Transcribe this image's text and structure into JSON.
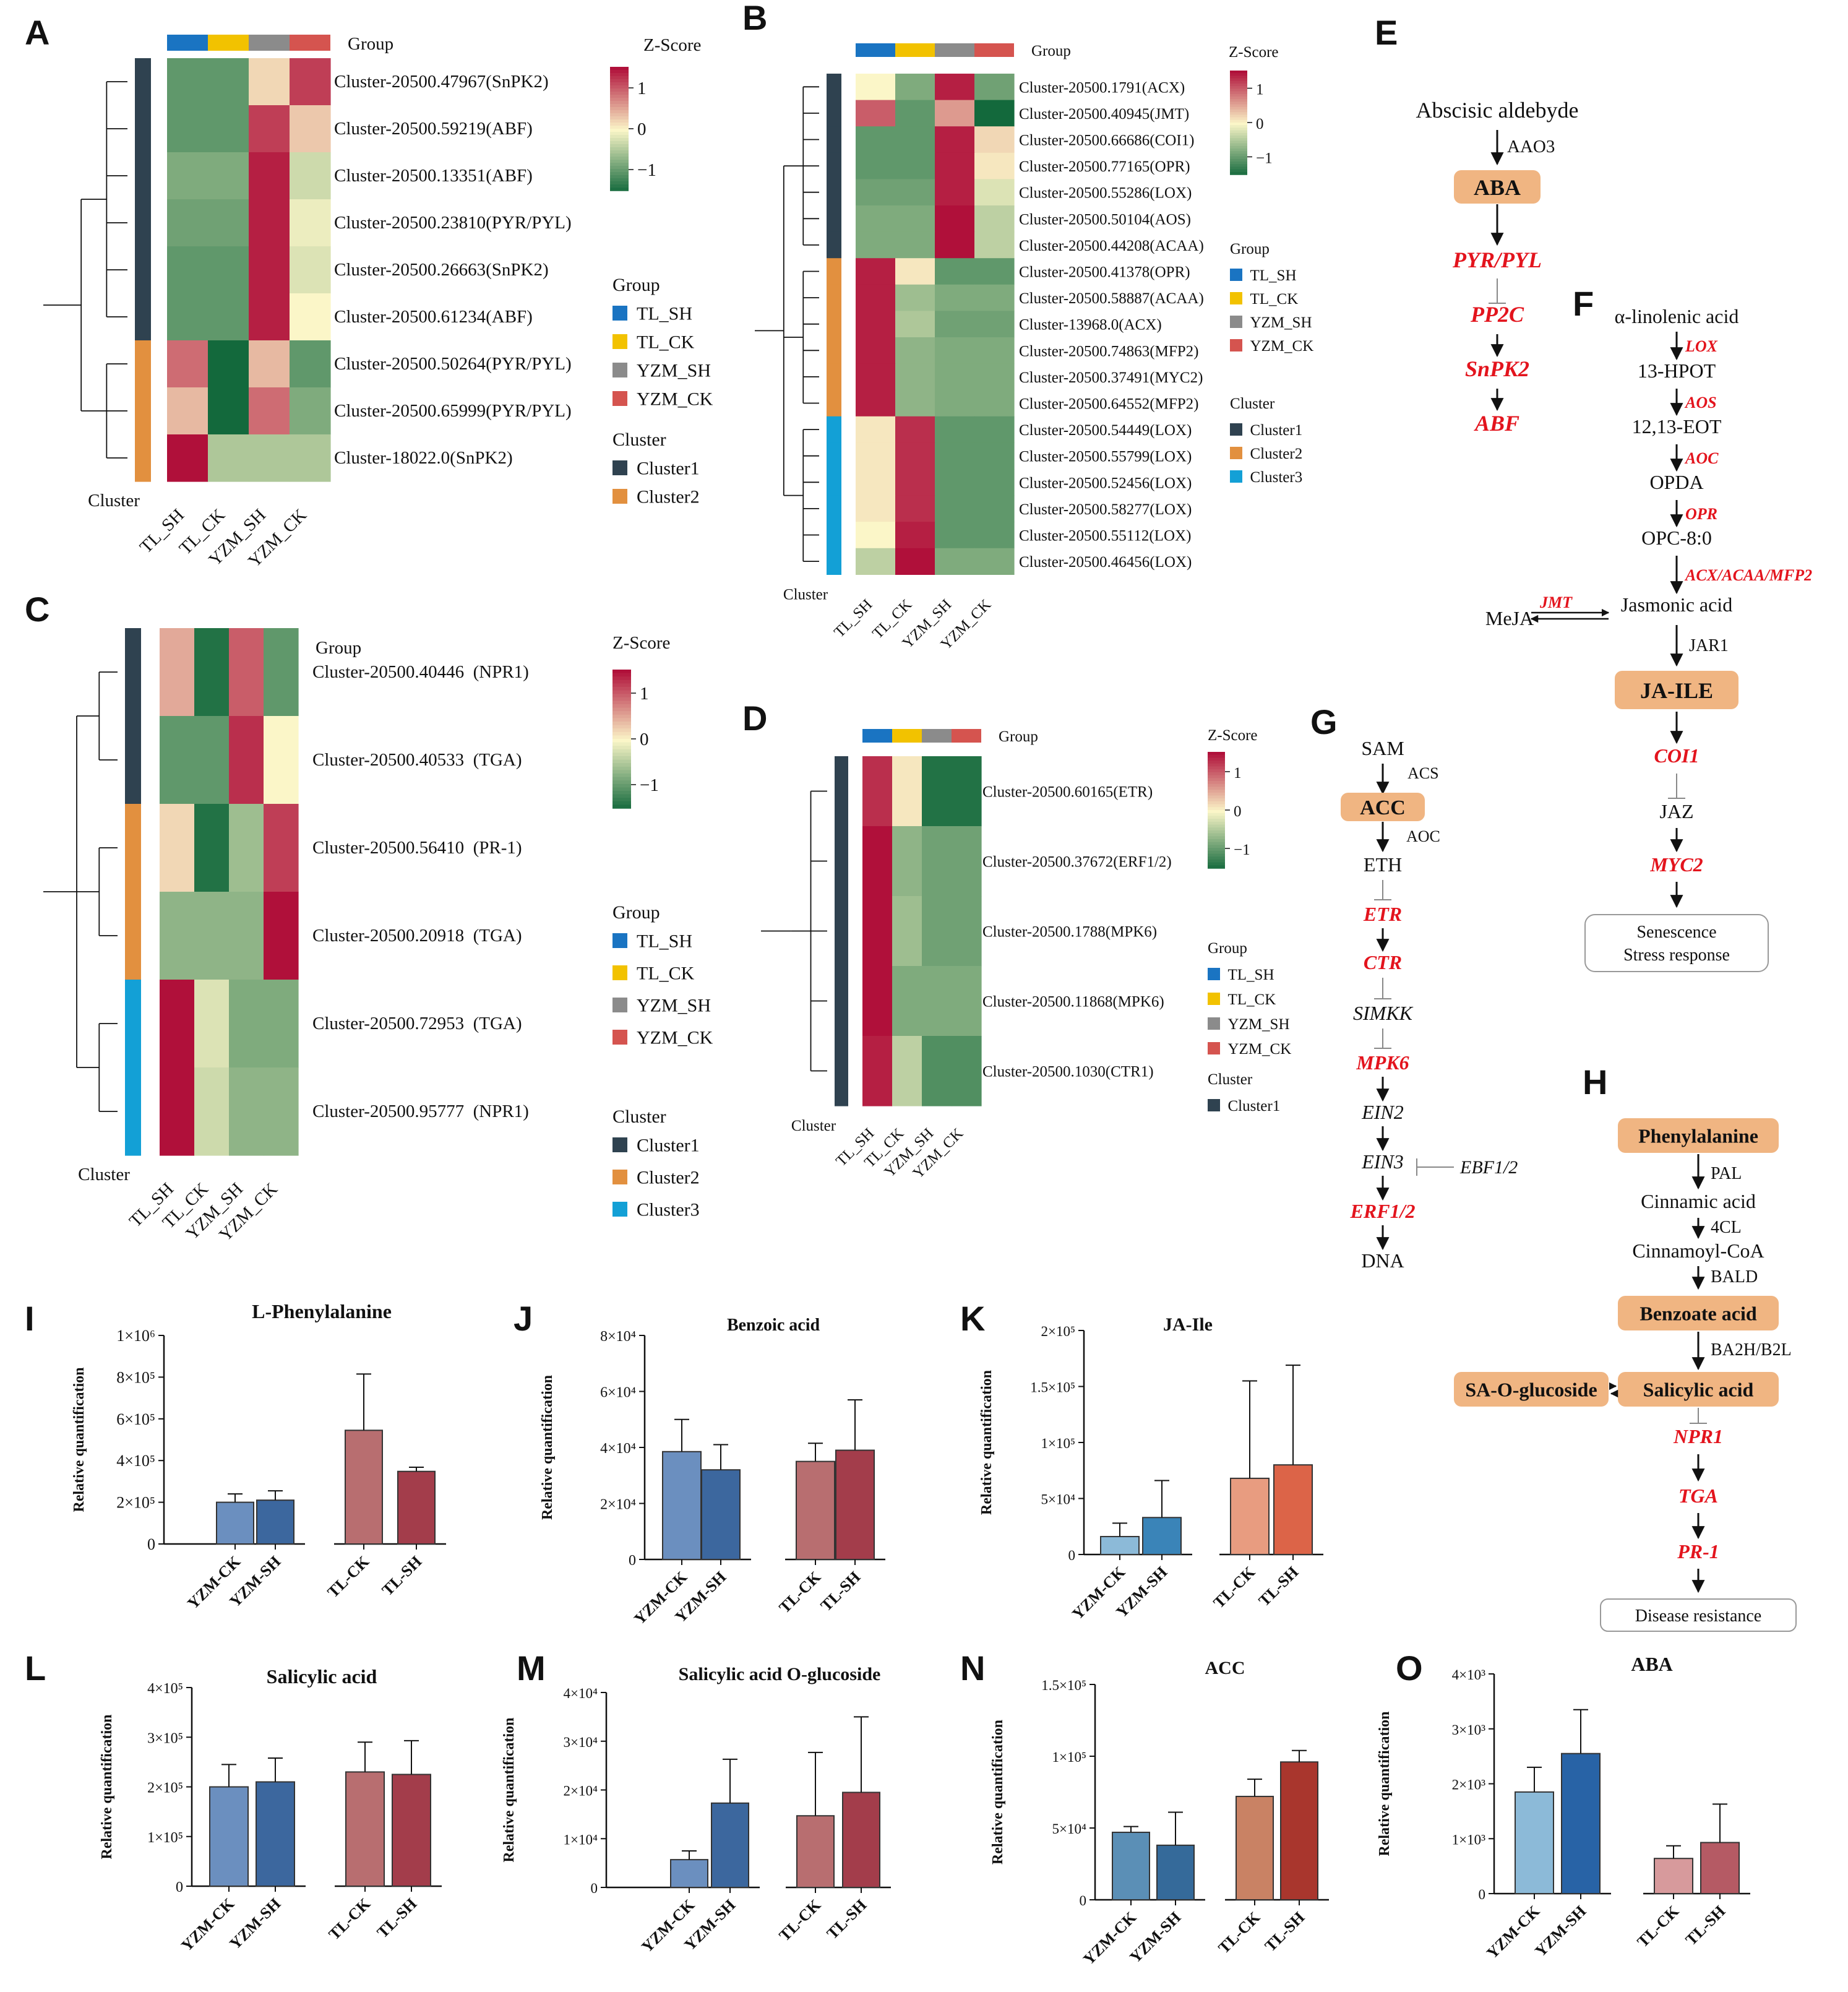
{
  "colors": {
    "TL_SH": "#1a74c2",
    "TL_CK": "#f2c200",
    "YZM_SH": "#8b8b8b",
    "YZM_CK": "#d5544f",
    "Cluster1": "#2f4250",
    "Cluster2": "#e2903f",
    "Cluster3": "#13a0d6",
    "node_fill": "#f0b582",
    "scale_high": "#b0103a",
    "scale_mid": "#fbf6c8",
    "scale_low": "#13693c"
  },
  "panels": {
    "A": {
      "letter": "A",
      "group_title": "Group",
      "zscore_title": "Z-Score",
      "cluster_axis": "Cluster",
      "columns": [
        "TL_SH",
        "TL_CK",
        "YZM_SH",
        "YZM_CK"
      ],
      "rows": [
        "Cluster-20500.47967(SnPK2)",
        "Cluster-20500.59219(ABF)",
        "Cluster-20500.13351(ABF)",
        "Cluster-20500.23810(PYR/PYL)",
        "Cluster-20500.26663(SnPK2)",
        "Cluster-20500.61234(ABF)",
        "Cluster-20500.50264(PYR/PYL)",
        "Cluster-20500.65999(PYR/PYL)",
        "Cluster-18022.0(SnPK2)"
      ],
      "cluster_of_row": [
        1,
        1,
        1,
        1,
        1,
        1,
        2,
        2,
        2
      ],
      "values": [
        [
          -1.0,
          -1.0,
          0.2,
          1.2
        ],
        [
          -1.0,
          -1.0,
          1.2,
          0.3
        ],
        [
          -0.8,
          -0.8,
          1.4,
          -0.3
        ],
        [
          -0.9,
          -0.9,
          1.4,
          -0.1
        ],
        [
          -1.0,
          -1.0,
          1.4,
          -0.2
        ],
        [
          -1.0,
          -1.0,
          1.4,
          0.0
        ],
        [
          0.9,
          -1.5,
          0.4,
          -1.0
        ],
        [
          0.4,
          -1.5,
          0.9,
          -0.8
        ],
        [
          1.5,
          -0.5,
          -0.5,
          -0.5
        ]
      ],
      "scale_ticks": [
        "1",
        "0",
        "−1"
      ],
      "legend_group_title": "Group",
      "legend_groups": [
        "TL_SH",
        "TL_CK",
        "YZM_SH",
        "YZM_CK"
      ],
      "legend_cluster_title": "Cluster",
      "legend_clusters": [
        "Cluster1",
        "Cluster2"
      ]
    },
    "B": {
      "letter": "B",
      "group_title": "Group",
      "zscore_title": "Z-Score",
      "cluster_axis": "Cluster",
      "columns": [
        "TL_SH",
        "TL_CK",
        "YZM_SH",
        "YZM_CK"
      ],
      "rows": [
        "Cluster-20500.1791(ACX)",
        "Cluster-20500.40945(JMT)",
        "Cluster-20500.66686(COI1)",
        "Cluster-20500.77165(OPR)",
        "Cluster-20500.55286(LOX)",
        "Cluster-20500.50104(AOS)",
        "Cluster-20500.44208(ACAA)",
        "Cluster-20500.41378(OPR)",
        "Cluster-20500.58887(ACAA)",
        "Cluster-13968.0(ACX)",
        "Cluster-20500.74863(MFP2)",
        "Cluster-20500.37491(MYC2)",
        "Cluster-20500.64552(MFP2)",
        "Cluster-20500.54449(LOX)",
        "Cluster-20500.55799(LOX)",
        "Cluster-20500.52456(LOX)",
        "Cluster-20500.58277(LOX)",
        "Cluster-20500.55112(LOX)",
        "Cluster-20500.46456(LOX)"
      ],
      "cluster_of_row": [
        1,
        1,
        1,
        1,
        1,
        1,
        1,
        2,
        2,
        2,
        2,
        2,
        2,
        3,
        3,
        3,
        3,
        3,
        3
      ],
      "values": [
        [
          0.0,
          -0.8,
          1.4,
          -0.9
        ],
        [
          1.0,
          -1.0,
          0.6,
          -1.5
        ],
        [
          -1.0,
          -1.0,
          1.4,
          0.2
        ],
        [
          -1.0,
          -1.0,
          1.4,
          0.1
        ],
        [
          -0.9,
          -0.9,
          1.4,
          -0.2
        ],
        [
          -0.8,
          -0.8,
          1.5,
          -0.4
        ],
        [
          -0.8,
          -0.8,
          1.5,
          -0.4
        ],
        [
          1.4,
          0.1,
          -1.0,
          -1.0
        ],
        [
          1.4,
          -0.6,
          -0.8,
          -0.8
        ],
        [
          1.4,
          -0.5,
          -0.9,
          -0.9
        ],
        [
          1.4,
          -0.7,
          -0.8,
          -0.8
        ],
        [
          1.4,
          -0.7,
          -0.8,
          -0.8
        ],
        [
          1.4,
          -0.7,
          -0.8,
          -0.8
        ],
        [
          0.1,
          1.3,
          -1.0,
          -1.0
        ],
        [
          0.1,
          1.3,
          -1.0,
          -1.0
        ],
        [
          0.1,
          1.3,
          -1.0,
          -1.0
        ],
        [
          0.1,
          1.3,
          -1.0,
          -1.0
        ],
        [
          0.0,
          1.4,
          -1.0,
          -1.0
        ],
        [
          -0.4,
          1.5,
          -0.8,
          -0.8
        ]
      ],
      "scale_ticks": [
        "1",
        "0",
        "−1"
      ],
      "legend_group_title": "Group",
      "legend_groups": [
        "TL_SH",
        "TL_CK",
        "YZM_SH",
        "YZM_CK"
      ],
      "legend_cluster_title": "Cluster",
      "legend_clusters": [
        "Cluster1",
        "Cluster2",
        "Cluster3"
      ]
    },
    "C": {
      "letter": "C",
      "group_title": "Group",
      "zscore_title": "Z-Score",
      "cluster_axis": "Cluster",
      "columns": [
        "TL_SH",
        "TL_CK",
        "YZM_SH",
        "YZM_CK"
      ],
      "rows": [
        "Cluster-20500.40446  (NPR1)",
        "Cluster-20500.40533  (TGA)",
        "Cluster-20500.56410  (PR-1)",
        "Cluster-20500.20918  (TGA)",
        "Cluster-20500.72953  (TGA)",
        "Cluster-20500.95777  (NPR1)"
      ],
      "cluster_of_row": [
        1,
        1,
        2,
        2,
        3,
        3
      ],
      "values": [
        [
          0.5,
          -1.4,
          1.0,
          -1.0
        ],
        [
          -1.0,
          -1.0,
          1.3,
          0.0
        ],
        [
          0.2,
          -1.4,
          -0.6,
          1.2
        ],
        [
          -0.7,
          -0.7,
          -0.7,
          1.5
        ],
        [
          1.5,
          -0.2,
          -0.8,
          -0.8
        ],
        [
          1.5,
          -0.3,
          -0.7,
          -0.7
        ]
      ],
      "scale_ticks": [
        "1",
        "0",
        "−1"
      ],
      "legend_group_title": "Group",
      "legend_groups": [
        "TL_SH",
        "TL_CK",
        "YZM_SH",
        "YZM_CK"
      ],
      "legend_cluster_title": "Cluster",
      "legend_clusters": [
        "Cluster1",
        "Cluster2",
        "Cluster3"
      ]
    },
    "D": {
      "letter": "D",
      "group_title": "Group",
      "zscore_title": "Z-Score",
      "cluster_axis": "Cluster",
      "columns": [
        "TL_SH",
        "TL_CK",
        "YZM_SH",
        "YZM_CK"
      ],
      "rows": [
        "Cluster-20500.60165(ETR)",
        "Cluster-20500.37672(ERF1/2)",
        "Cluster-20500.1788(MPK6)",
        "Cluster-20500.11868(MPK6)",
        "Cluster-20500.1030(CTR1)"
      ],
      "cluster_of_row": [
        1,
        1,
        1,
        1,
        1
      ],
      "values": [
        [
          1.3,
          0.1,
          -1.4,
          -1.4
        ],
        [
          1.5,
          -0.7,
          -0.9,
          -0.9
        ],
        [
          1.5,
          -0.6,
          -0.9,
          -0.9
        ],
        [
          1.5,
          -0.8,
          -0.8,
          -0.8
        ],
        [
          1.4,
          -0.4,
          -1.1,
          -1.1
        ]
      ],
      "scale_ticks": [
        "1",
        "0",
        "−1"
      ],
      "legend_group_title": "Group",
      "legend_groups": [
        "TL_SH",
        "TL_CK",
        "YZM_SH",
        "YZM_CK"
      ],
      "legend_cluster_title": "Cluster",
      "legend_clusters": [
        "Cluster1"
      ]
    },
    "E": {
      "letter": "E",
      "start": "Abscisic aldebyde",
      "enzyme": "AAO3",
      "node": "ABA",
      "genes": [
        "PYR/PYL",
        "PP2C",
        "SnPK2",
        "ABF"
      ]
    },
    "F": {
      "letter": "F",
      "start": "α-linolenic acid",
      "steps": [
        {
          "enzyme": "LOX",
          "product": "13-HPOT"
        },
        {
          "enzyme": "AOS",
          "product": "12,13-EOT"
        },
        {
          "enzyme": "AOC",
          "product": "OPDA"
        },
        {
          "enzyme": "OPR",
          "product": "OPC-8:0"
        },
        {
          "enzyme": "ACX/ACAA/MFP2",
          "product": "Jasmonic acid"
        }
      ],
      "side_product": "MeJA",
      "side_enzyme": "JMT",
      "jar": "JAR1",
      "node": "JA-ILE",
      "genes": [
        "COI1",
        "JAZ",
        "MYC2"
      ],
      "outcome": [
        "Senescence",
        "Stress response"
      ]
    },
    "G": {
      "letter": "G",
      "start": "SAM",
      "enzyme1": "ACS",
      "node": "ACC",
      "enzyme2": "AOC",
      "chain": [
        "ETH",
        "ETR",
        "CTR",
        "SIMKK",
        "MPK6",
        "EIN2",
        "EIN3",
        "ERF1/2",
        "DNA"
      ],
      "ebf": "EBF1/2"
    },
    "H": {
      "letter": "H",
      "start": "Phenylalanine",
      "steps": [
        {
          "enzyme": "PAL",
          "product": "Cinnamic acid"
        },
        {
          "enzyme": "4CL",
          "product": "Cinnamoyl-CoA"
        },
        {
          "enzyme": "BALD",
          "product": "Benzoate acid"
        },
        {
          "enzyme": "BA2H/B2L",
          "product": "Salicylic acid"
        }
      ],
      "glucoside": "SA-O-glucoside",
      "genes": [
        "NPR1",
        "TGA",
        "PR-1"
      ],
      "outcome": "Disease resistance"
    }
  },
  "ylabel": "Relative quantification",
  "chart_data": [
    {
      "id": "I",
      "type": "bar",
      "title": "L-Phenylalanine",
      "ylabel": "Relative quantification",
      "categories": [
        "YZM-CK",
        "YZM-SH",
        "TL-CK",
        "TL-SH"
      ],
      "values": [
        200000,
        210000,
        545000,
        348000
      ],
      "errors": [
        40000,
        45000,
        270000,
        20000
      ],
      "ylim": [
        0,
        1000000
      ],
      "yticks": [
        0,
        200000,
        400000,
        600000,
        800000,
        1000000
      ],
      "ytick_labels": [
        "0",
        "2×10⁵",
        "4×10⁵",
        "6×10⁵",
        "8×10⁵",
        "1×10⁶"
      ],
      "colors": [
        "#6b8fbf",
        "#3c679e",
        "#b86e70",
        "#a33d4b"
      ]
    },
    {
      "id": "J",
      "type": "bar",
      "title": "Benzoic acid",
      "ylabel": "Relative quantification",
      "categories": [
        "YZM-CK",
        "YZM-SH",
        "TL-CK",
        "TL-SH"
      ],
      "values": [
        38500,
        32000,
        35000,
        39000
      ],
      "errors": [
        11500,
        9000,
        6500,
        18000
      ],
      "ylim": [
        0,
        80000
      ],
      "yticks": [
        0,
        20000,
        40000,
        60000,
        80000
      ],
      "ytick_labels": [
        "0",
        "2×10⁴",
        "4×10⁴",
        "6×10⁴",
        "8×10⁴"
      ],
      "colors": [
        "#6b8fbf",
        "#3c679e",
        "#b86e70",
        "#a33d4b"
      ]
    },
    {
      "id": "K",
      "type": "bar",
      "title": "JA-Ile",
      "ylabel": "Relative quantification",
      "categories": [
        "YZM-CK",
        "YZM-SH",
        "TL-CK",
        "TL-SH"
      ],
      "values": [
        16000,
        33000,
        68000,
        80000
      ],
      "errors": [
        12000,
        33000,
        87000,
        89000
      ],
      "ylim": [
        0,
        200000
      ],
      "yticks": [
        0,
        50000,
        100000,
        150000,
        200000
      ],
      "ytick_labels": [
        "0",
        "5×10⁴",
        "1×10⁵",
        "1.5×10⁵",
        "2×10⁵"
      ],
      "colors": [
        "#8cbad8",
        "#3a84b8",
        "#e89c80",
        "#dc6448"
      ]
    },
    {
      "id": "L",
      "type": "bar",
      "title": "Salicylic acid",
      "ylabel": "Relative quantification",
      "categories": [
        "YZM-CK",
        "YZM-SH",
        "TL-CK",
        "TL-SH"
      ],
      "values": [
        200000,
        210000,
        230000,
        225000
      ],
      "errors": [
        45000,
        48000,
        60000,
        68000
      ],
      "ylim": [
        0,
        400000
      ],
      "yticks": [
        0,
        100000,
        200000,
        300000,
        400000
      ],
      "ytick_labels": [
        "0",
        "1×10⁵",
        "2×10⁵",
        "3×10⁵",
        "4×10⁵"
      ],
      "colors": [
        "#6b8fbf",
        "#3c679e",
        "#b86e70",
        "#a33d4b"
      ]
    },
    {
      "id": "M",
      "type": "bar",
      "title": "Salicylic acid O-glucoside",
      "ylabel": "Relative quantification",
      "categories": [
        "YZM-CK",
        "YZM-SH",
        "TL-CK",
        "TL-SH"
      ],
      "values": [
        5700,
        17300,
        14700,
        19500
      ],
      "errors": [
        1800,
        9000,
        13000,
        15500
      ],
      "ylim": [
        0,
        40000
      ],
      "yticks": [
        0,
        10000,
        20000,
        30000,
        40000
      ],
      "ytick_labels": [
        "0",
        "1×10⁴",
        "2×10⁴",
        "3×10⁴",
        "4×10⁴"
      ],
      "colors": [
        "#6b8fbf",
        "#3c679e",
        "#b86e70",
        "#a33d4b"
      ]
    },
    {
      "id": "N",
      "type": "bar",
      "title": "ACC",
      "ylabel": "Relative quantification",
      "categories": [
        "YZM-CK",
        "YZM-SH",
        "TL-CK",
        "TL-SH"
      ],
      "values": [
        47000,
        38000,
        72000,
        96000
      ],
      "errors": [
        4000,
        23000,
        12000,
        8000
      ],
      "ylim": [
        0,
        150000
      ],
      "yticks": [
        0,
        50000,
        100000,
        150000
      ],
      "ytick_labels": [
        "0",
        "5×10⁴",
        "1×10⁵",
        "1.5×10⁵"
      ],
      "colors": [
        "#5b8fb6",
        "#356a9a",
        "#c98264",
        "#a9362d"
      ]
    },
    {
      "id": "O",
      "type": "bar",
      "title": "ABA",
      "ylabel": "Relative quantification",
      "categories": [
        "YZM-CK",
        "YZM-SH",
        "TL-CK",
        "TL-SH"
      ],
      "values": [
        1850,
        2550,
        640,
        930
      ],
      "errors": [
        450,
        800,
        230,
        700
      ],
      "ylim": [
        0,
        4000
      ],
      "yticks": [
        0,
        1000,
        2000,
        3000,
        4000
      ],
      "ytick_labels": [
        "0",
        "1×10³",
        "2×10³",
        "3×10³",
        "4×10³"
      ],
      "colors": [
        "#8cbad8",
        "#2863a6",
        "#d79a9c",
        "#b55a64"
      ]
    }
  ]
}
